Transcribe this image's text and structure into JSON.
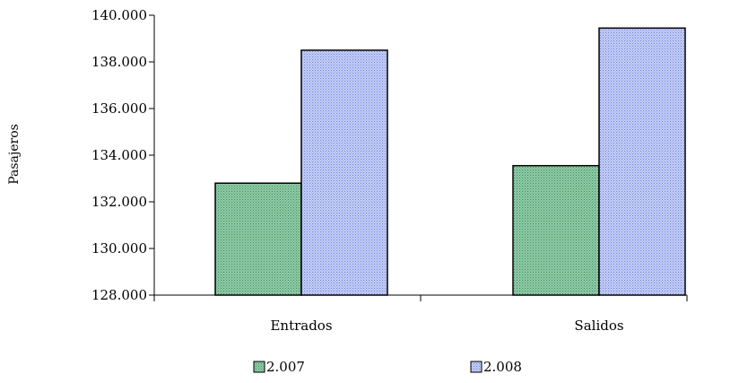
{
  "chart_data": {
    "type": "bar",
    "title": "",
    "xlabel": "",
    "ylabel": "Pasajeros",
    "categories": [
      "Entrados",
      "Salidos"
    ],
    "series": [
      {
        "name": "2.007",
        "values": [
          132800,
          133550
        ],
        "color": "#7fbf9a"
      },
      {
        "name": "2.008",
        "values": [
          138500,
          139450
        ],
        "color": "#aab8f0"
      }
    ],
    "ylim": [
      128000,
      140000
    ],
    "yticks": [
      128000,
      130000,
      132000,
      134000,
      136000,
      138000,
      140000
    ],
    "ytick_labels": [
      "128.000",
      "130.000",
      "132.000",
      "134.000",
      "136.000",
      "138.000",
      "140.000"
    ],
    "grid": false,
    "legend_position": "bottom"
  }
}
